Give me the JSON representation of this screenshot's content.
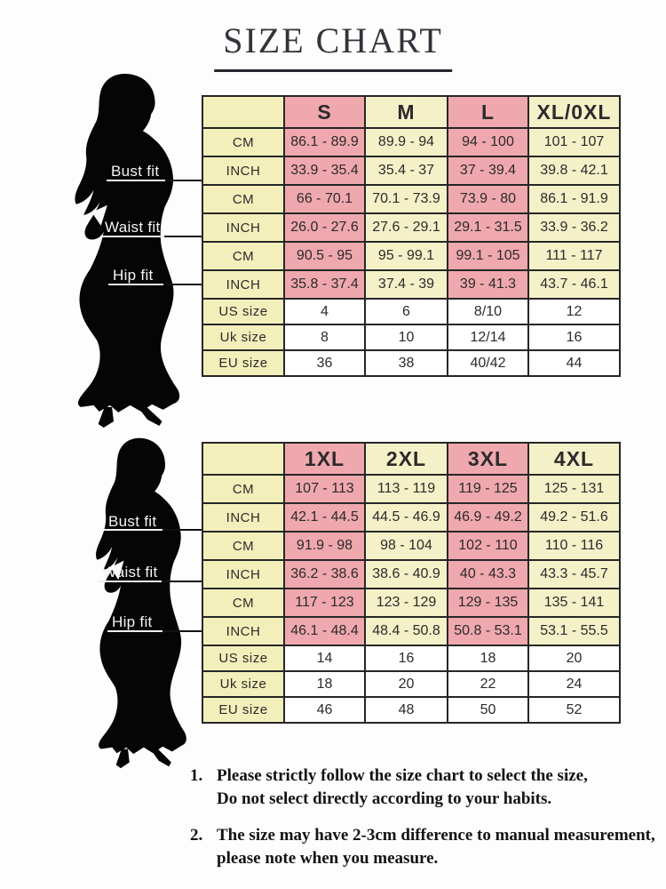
{
  "title": "SIZE CHART",
  "figure_labels": {
    "bust": "Bust fit",
    "waist": "Waist fit",
    "hip": "Hip fit"
  },
  "colors": {
    "pink": "#efa8ae",
    "cream": "#f4f1c9",
    "label_cream": "#f3efbb",
    "border": "#262626"
  },
  "tables": [
    {
      "header": [
        "",
        "S",
        "M",
        "L",
        "XL/0XL"
      ],
      "rows": [
        {
          "type": "measure",
          "cells": [
            "CM",
            "86.1 - 89.9",
            "89.9 - 94",
            "94 - 100",
            "101 - 107"
          ]
        },
        {
          "type": "measure",
          "cells": [
            "INCH",
            "33.9 - 35.4",
            "35.4 - 37",
            "37 - 39.4",
            "39.8 - 42.1"
          ]
        },
        {
          "type": "measure",
          "cells": [
            "CM",
            "66 - 70.1",
            "70.1 - 73.9",
            "73.9 - 80",
            "86.1 - 91.9"
          ]
        },
        {
          "type": "measure",
          "cells": [
            "INCH",
            "26.0 - 27.6",
            "27.6 - 29.1",
            "29.1 - 31.5",
            "33.9 - 36.2"
          ]
        },
        {
          "type": "measure",
          "cells": [
            "CM",
            "90.5 - 95",
            "95 - 99.1",
            "99.1 - 105",
            "111 - 117"
          ]
        },
        {
          "type": "measure",
          "cells": [
            "INCH",
            "35.8 - 37.4",
            "37.4 - 39",
            "39 - 41.3",
            "43.7 - 46.1"
          ]
        },
        {
          "type": "size",
          "cells": [
            "US size",
            "4",
            "6",
            "8/10",
            "12"
          ]
        },
        {
          "type": "size",
          "cells": [
            "Uk size",
            "8",
            "10",
            "12/14",
            "16"
          ]
        },
        {
          "type": "size",
          "cells": [
            "EU size",
            "36",
            "38",
            "40/42",
            "44"
          ]
        }
      ]
    },
    {
      "header": [
        "",
        "1XL",
        "2XL",
        "3XL",
        "4XL"
      ],
      "rows": [
        {
          "type": "measure",
          "cells": [
            "CM",
            "107 - 113",
            "113 - 119",
            "119 - 125",
            "125 - 131"
          ]
        },
        {
          "type": "measure",
          "cells": [
            "INCH",
            "42.1 - 44.5",
            "44.5 - 46.9",
            "46.9 - 49.2",
            "49.2 - 51.6"
          ]
        },
        {
          "type": "measure",
          "cells": [
            "CM",
            "91.9 - 98",
            "98 - 104",
            "102 - 110",
            "110 - 116"
          ]
        },
        {
          "type": "measure",
          "cells": [
            "INCH",
            "36.2 - 38.6",
            "38.6 - 40.9",
            "40 - 43.3",
            "43.3 - 45.7"
          ]
        },
        {
          "type": "measure",
          "cells": [
            "CM",
            "117 - 123",
            "123 - 129",
            "129 - 135",
            "135 - 141"
          ]
        },
        {
          "type": "measure",
          "cells": [
            "INCH",
            "46.1 - 48.4",
            "48.4 - 50.8",
            "50.8 - 53.1",
            "53.1 - 55.5"
          ]
        },
        {
          "type": "size",
          "cells": [
            "US size",
            "14",
            "16",
            "18",
            "20"
          ]
        },
        {
          "type": "size",
          "cells": [
            "Uk size",
            "18",
            "20",
            "22",
            "24"
          ]
        },
        {
          "type": "size",
          "cells": [
            "EU size",
            "46",
            "48",
            "50",
            "52"
          ]
        }
      ]
    }
  ],
  "notes": {
    "items": [
      {
        "num": "1.",
        "lines": [
          "Please strictly follow the size chart to select the size,",
          "Do not select directly according to your habits."
        ]
      },
      {
        "num": "2.",
        "lines": [
          "The size may have 2-3cm difference  to manual measurement,",
          "please note when you measure."
        ]
      }
    ]
  }
}
